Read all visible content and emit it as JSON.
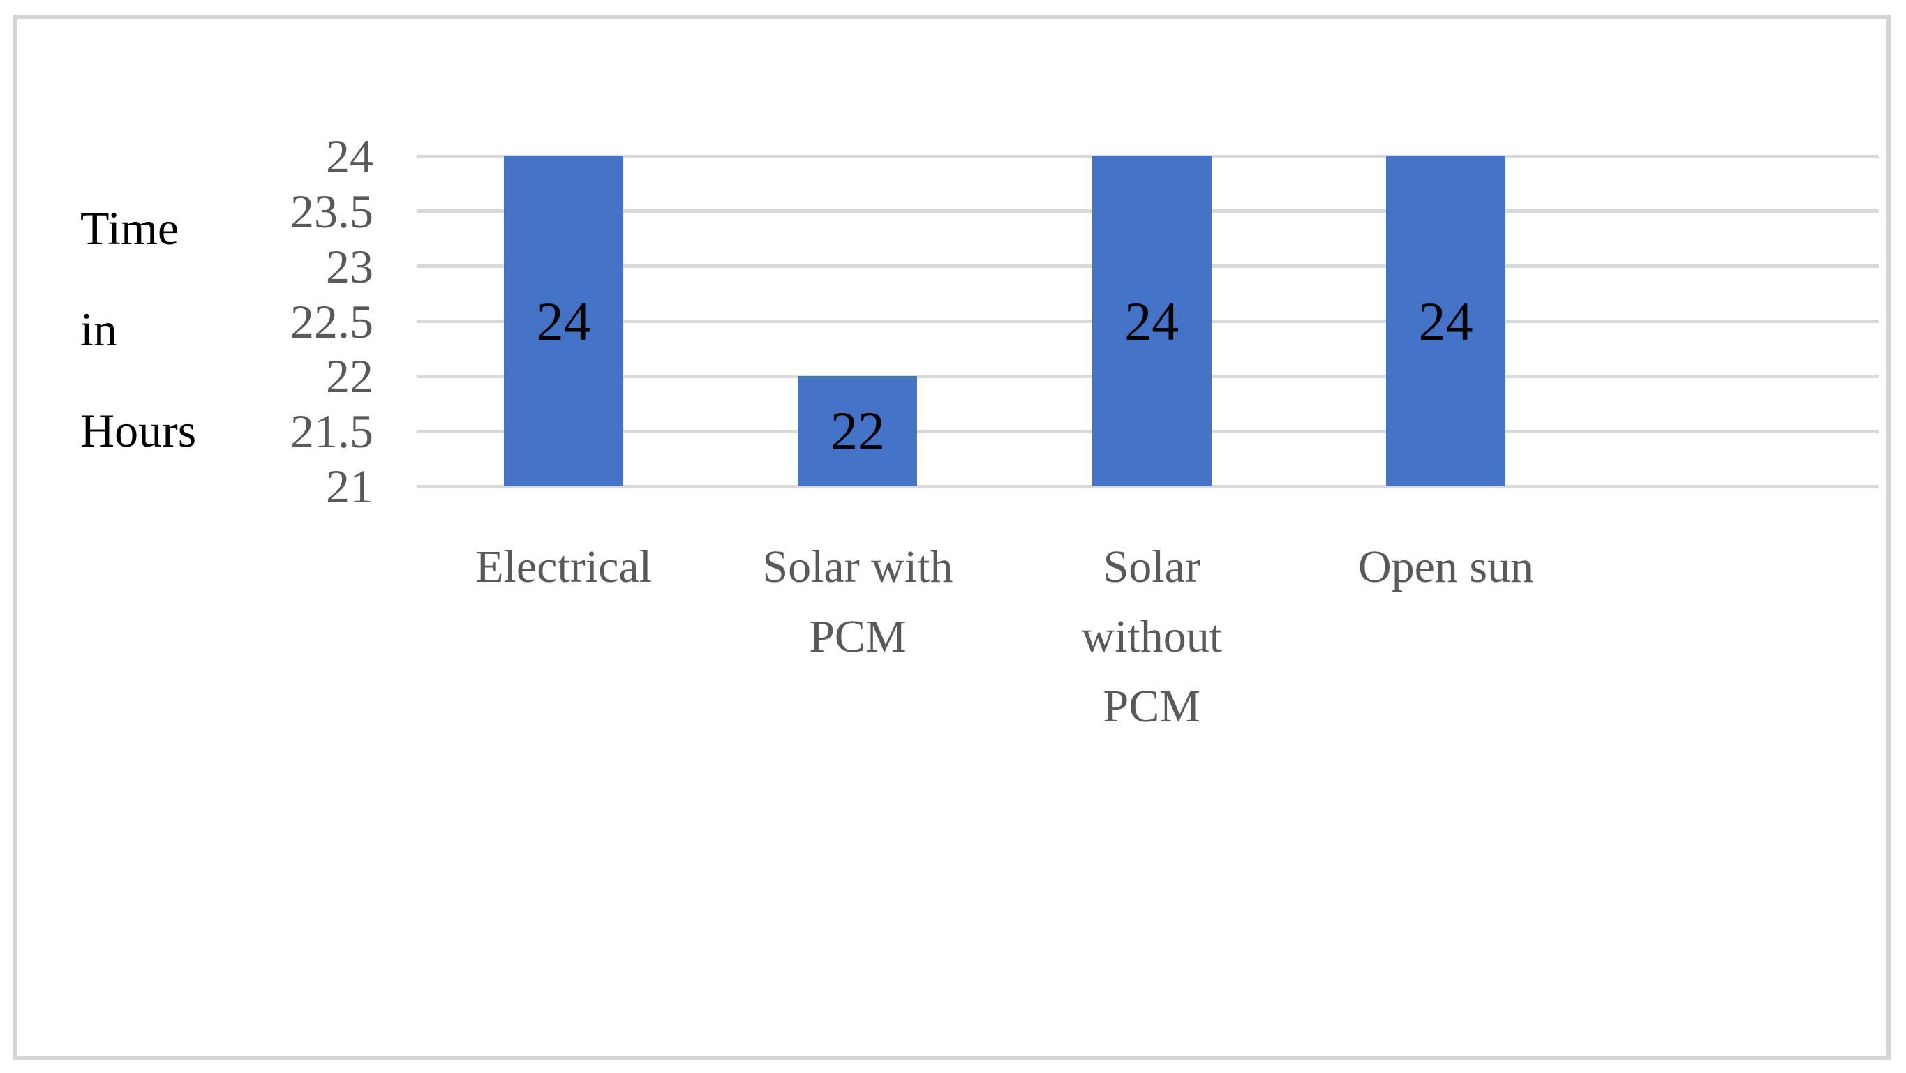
{
  "figure": {
    "background_color": "#ffffff",
    "frame_border_color": "#d6d6d6"
  },
  "chart_data": {
    "type": "bar",
    "title": "",
    "xlabel": "",
    "ylabel": "Time in Hours",
    "ylabel_words": [
      "Time",
      "in",
      "Hours"
    ],
    "categories": [
      "Electrical",
      "Solar with PCM",
      "Solar without PCM",
      "Open sun"
    ],
    "category_label_lines": [
      [
        "Electrical"
      ],
      [
        "Solar with",
        "PCM"
      ],
      [
        "Solar",
        "without",
        "PCM"
      ],
      [
        "Open sun"
      ]
    ],
    "values": [
      24,
      22,
      24,
      24
    ],
    "data_labels": [
      "24",
      "22",
      "24",
      "24"
    ],
    "ylim": [
      21,
      24
    ],
    "ytick_values": [
      24,
      23.5,
      23,
      22.5,
      22,
      21.5,
      21
    ],
    "ytick_labels": [
      "24",
      "23.5",
      "23",
      "22.5",
      "22",
      "21.5",
      "21"
    ],
    "grid": true,
    "legend_position": "none",
    "bar_color": "#4472c4",
    "gridline_color": "#d9d9d9",
    "tick_text_color": "#595959",
    "axis_title_color": "#000000",
    "data_label_color": "#000000"
  }
}
